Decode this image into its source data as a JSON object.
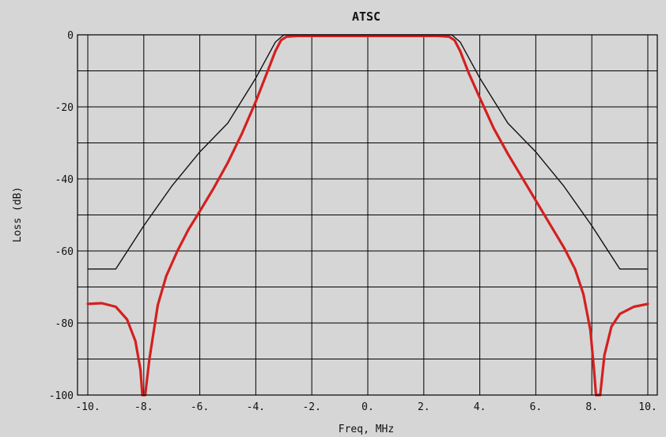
{
  "chart_data": {
    "type": "line",
    "title": "ATSC",
    "xlabel": "Freq, MHz",
    "ylabel": "Loss (dB)",
    "xlim": [
      -10,
      10
    ],
    "ylim": [
      -100,
      0
    ],
    "grid": true,
    "x_ticks": [
      -10,
      -8,
      -6,
      -4,
      -2,
      0,
      2,
      4,
      6,
      8,
      10
    ],
    "x_tick_labels": [
      "-10.",
      "-8.",
      "-6.",
      "-4.",
      "-2.",
      "0.",
      "2.",
      "4.",
      "6.",
      "8.",
      "10."
    ],
    "y_ticks": [
      0,
      -20,
      -40,
      -60,
      -80,
      -100
    ],
    "y_tick_labels": [
      "0",
      "-20",
      "-40",
      "-60",
      "-80",
      "-100"
    ],
    "series": [
      {
        "color": "#111111",
        "points": [
          [
            -10,
            -65
          ],
          [
            -9,
            -65
          ],
          [
            -8,
            -53
          ],
          [
            -7,
            -42
          ],
          [
            -6,
            -32.5
          ],
          [
            -5,
            -24.5
          ],
          [
            -4,
            -12
          ],
          [
            -3.3,
            -2
          ],
          [
            -3,
            0
          ],
          [
            3,
            0
          ],
          [
            3.3,
            -2
          ],
          [
            4,
            -12
          ],
          [
            5,
            -24.5
          ],
          [
            6,
            -32.5
          ],
          [
            7,
            -42
          ],
          [
            8,
            -53
          ],
          [
            9,
            -65
          ],
          [
            10,
            -65
          ]
        ]
      },
      {
        "color": "#d42020",
        "points": [
          [
            -10,
            -74.7
          ],
          [
            -9.5,
            -74.5
          ],
          [
            -9,
            -75.5
          ],
          [
            -8.6,
            -79
          ],
          [
            -8.3,
            -85
          ],
          [
            -8.12,
            -93
          ],
          [
            -8.05,
            -100
          ],
          [
            -7.95,
            -100
          ],
          [
            -7.8,
            -90
          ],
          [
            -7.5,
            -75
          ],
          [
            -7.2,
            -67
          ],
          [
            -6.8,
            -60
          ],
          [
            -6.4,
            -54
          ],
          [
            -6,
            -49
          ],
          [
            -5.5,
            -42.5
          ],
          [
            -5,
            -35.5
          ],
          [
            -4.5,
            -27.5
          ],
          [
            -4,
            -18.5
          ],
          [
            -3.6,
            -10.5
          ],
          [
            -3.3,
            -4.5
          ],
          [
            -3.1,
            -1.5
          ],
          [
            -2.9,
            -0.5
          ],
          [
            -2.5,
            -0.3
          ],
          [
            0,
            -0.3
          ],
          [
            2.5,
            -0.3
          ],
          [
            2.9,
            -0.5
          ],
          [
            3.1,
            -1.5
          ],
          [
            3.3,
            -4.5
          ],
          [
            3.6,
            -10.5
          ],
          [
            4,
            -17.5
          ],
          [
            4.5,
            -26
          ],
          [
            5,
            -33
          ],
          [
            5.5,
            -39.5
          ],
          [
            6,
            -46
          ],
          [
            6.5,
            -52.5
          ],
          [
            7,
            -59
          ],
          [
            7.4,
            -65
          ],
          [
            7.7,
            -72
          ],
          [
            7.95,
            -82
          ],
          [
            8.08,
            -93
          ],
          [
            8.15,
            -100
          ],
          [
            8.3,
            -100
          ],
          [
            8.45,
            -89
          ],
          [
            8.7,
            -81
          ],
          [
            9,
            -77.5
          ],
          [
            9.5,
            -75.5
          ],
          [
            10,
            -74.7
          ]
        ]
      }
    ]
  }
}
